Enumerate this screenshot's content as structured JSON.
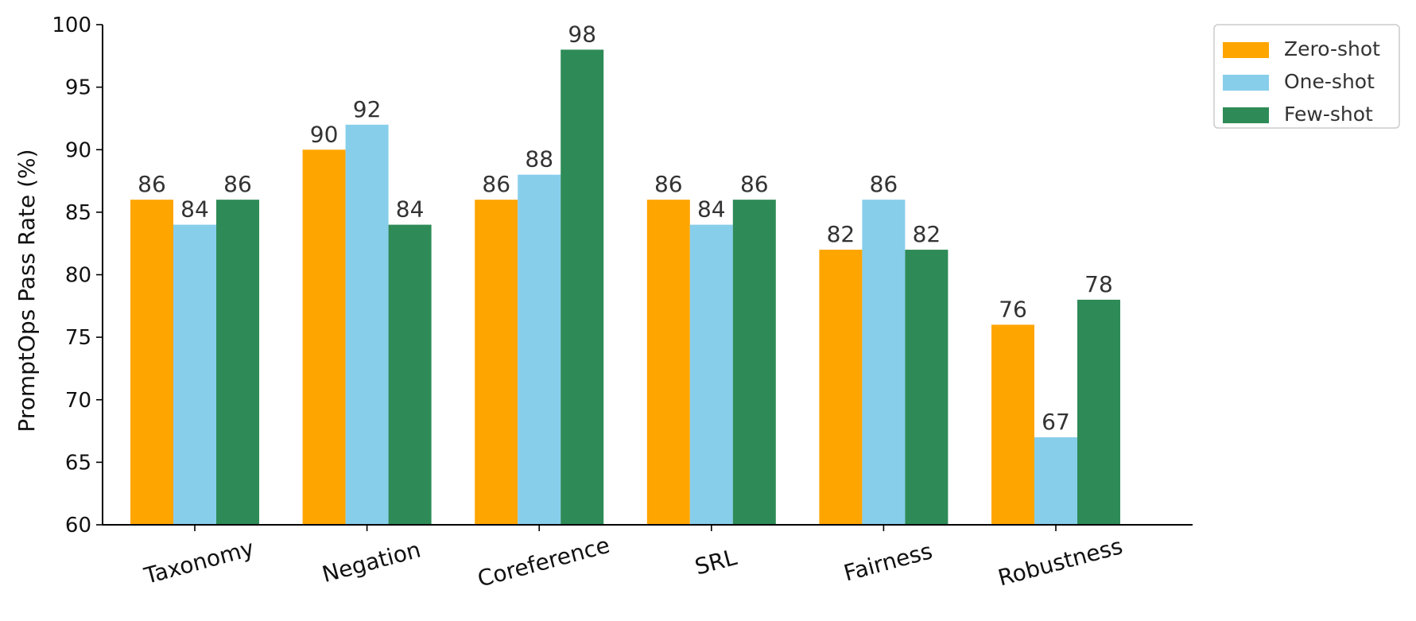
{
  "chart_data": {
    "type": "bar",
    "title": "",
    "xlabel": "",
    "ylabel": "PromptOps Pass Rate (%)",
    "ylim": [
      60,
      100
    ],
    "yticks": [
      60,
      65,
      70,
      75,
      80,
      85,
      90,
      95,
      100
    ],
    "grid": false,
    "legend_position": "top-right",
    "categories": [
      "Taxonomy",
      "Negation",
      "Coreference",
      "SRL",
      "Fairness",
      "Robustness"
    ],
    "series": [
      {
        "name": "Zero-shot",
        "color": "#FFA500",
        "values": [
          86,
          90,
          86,
          86,
          82,
          76
        ]
      },
      {
        "name": "One-shot",
        "color": "#87CEEB",
        "values": [
          84,
          92,
          88,
          84,
          86,
          67
        ]
      },
      {
        "name": "Few-shot",
        "color": "#2E8B57",
        "values": [
          86,
          84,
          98,
          86,
          82,
          78
        ]
      }
    ]
  }
}
